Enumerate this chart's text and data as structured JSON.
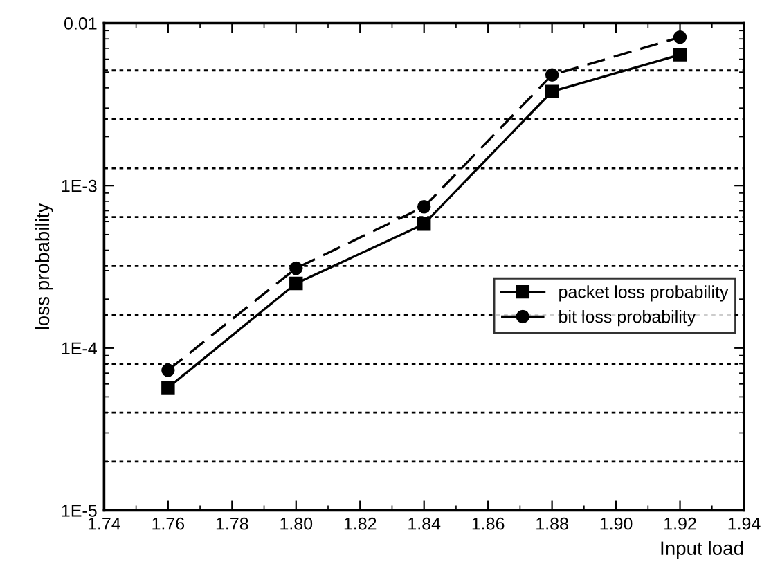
{
  "chart_data": {
    "type": "line",
    "xlabel": "Input load",
    "ylabel": "loss probability",
    "log": "y",
    "x": [
      1.76,
      1.8,
      1.84,
      1.88,
      1.92
    ],
    "series": [
      {
        "name": "packet loss probability",
        "color": "#000000",
        "marker": "square",
        "line_style": "solid",
        "values": [
          5.7e-05,
          0.00025,
          0.00058,
          0.0038,
          0.0064
        ]
      },
      {
        "name": "bit loss probability",
        "color": "#000000",
        "marker": "circle",
        "line_style": "dashed",
        "values": [
          7.3e-05,
          0.00031,
          0.00074,
          0.0048,
          0.0082
        ]
      }
    ],
    "xlim": [
      1.74,
      1.94
    ],
    "xticks": [
      1.74,
      1.76,
      1.78,
      {
        "value": 1.8,
        "label": "1.80"
      },
      1.82,
      1.84,
      1.86,
      1.88,
      {
        "value": 1.9,
        "label": "1.90"
      },
      1.92,
      1.94
    ],
    "ylim": [
      1e-05,
      0.01
    ],
    "yticks": [
      {
        "value": 1e-05,
        "label": "1E-5"
      },
      {
        "value": 0.0001,
        "label": "1E-4"
      },
      {
        "value": 0.001,
        "label": "1E-3"
      },
      {
        "value": 0.01,
        "label": "0.01"
      }
    ],
    "ref_lines": [
      {
        "axis": "y",
        "value": 2e-05,
        "line_style": "dotted"
      },
      {
        "axis": "y",
        "value": 4e-05,
        "line_style": "dotted"
      },
      {
        "axis": "y",
        "value": 8e-05,
        "line_style": "dotted"
      },
      {
        "axis": "y",
        "value": 0.00016,
        "line_style": "dotted"
      },
      {
        "axis": "y",
        "value": 0.00032,
        "line_style": "dotted"
      },
      {
        "axis": "y",
        "value": 0.00064,
        "line_style": "dotted"
      },
      {
        "axis": "y",
        "value": 0.00128,
        "line_style": "dotted"
      },
      {
        "axis": "y",
        "value": 0.00256,
        "line_style": "dotted"
      },
      {
        "axis": "y",
        "value": 0.00512,
        "line_style": "dotted"
      }
    ],
    "legend": "center right"
  }
}
